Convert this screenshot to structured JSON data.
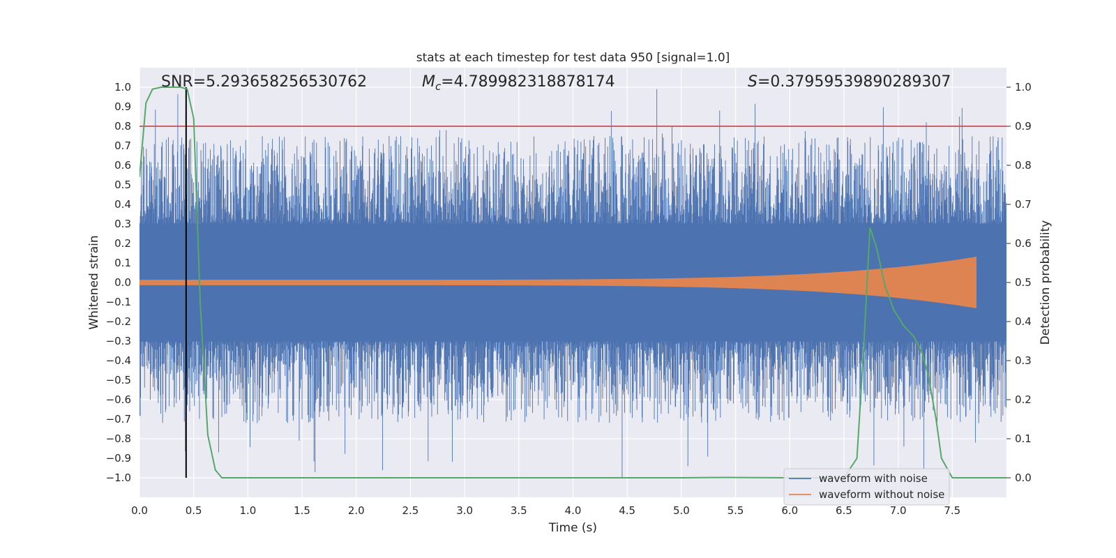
{
  "chart_data": {
    "type": "line",
    "title": "stats at each timestep for test data 950 [signal=1.0]",
    "xlabel": "Time (s)",
    "ylabel": "Whitened strain",
    "y2label": "Detection probability",
    "xlim": [
      0.0,
      8.0
    ],
    "ylim": [
      -1.1,
      1.1
    ],
    "y2lim": [
      -0.05,
      1.05
    ],
    "xticks": [
      "0.0",
      "0.5",
      "1.0",
      "1.5",
      "2.0",
      "2.5",
      "3.0",
      "3.5",
      "4.0",
      "4.5",
      "5.0",
      "5.5",
      "6.0",
      "6.5",
      "7.0",
      "7.5"
    ],
    "yticks": [
      "-1.0",
      "-0.9",
      "-0.8",
      "-0.7",
      "-0.6",
      "-0.5",
      "-0.4",
      "-0.3",
      "-0.2",
      "-0.1",
      "0.0",
      "0.1",
      "0.2",
      "0.3",
      "0.4",
      "0.5",
      "0.6",
      "0.7",
      "0.8",
      "0.9",
      "1.0"
    ],
    "y2ticks": [
      "0.0",
      "0.1",
      "0.2",
      "0.3",
      "0.4",
      "0.5",
      "0.6",
      "0.7",
      "0.8",
      "0.9",
      "1.0"
    ],
    "annotations": {
      "snr": "SNR=5.293658256530762",
      "mc_symbol": "M",
      "mc_sub": "c",
      "mc_value": "=4.789982318878174",
      "s_symbol": "S",
      "s_value": "=0.37959539890289307"
    },
    "threshold": {
      "value": 0.9,
      "axis": "right",
      "color": "#c44e52"
    },
    "marker_time": 0.43,
    "series": [
      {
        "name": "waveform with noise",
        "color": "#4c72b0",
        "axis": "left",
        "x_range": [
          0.0,
          8.0
        ],
        "band_low": -0.3,
        "band_high": 0.3,
        "spike_max": 1.0,
        "spike_min": -1.0
      },
      {
        "name": "waveform without noise",
        "color": "#dd8452",
        "axis": "left",
        "chirp_end": 7.72,
        "amplitude_start": 0.012,
        "amplitude_end": 0.13
      },
      {
        "name": "detection probability",
        "color": "#55a868",
        "axis": "right",
        "x": [
          0.0,
          0.06,
          0.12,
          0.2,
          0.3,
          0.38,
          0.44,
          0.5,
          0.56,
          0.63,
          0.7,
          0.76,
          1.0,
          2.0,
          3.0,
          4.0,
          5.0,
          5.4,
          6.0,
          6.5,
          6.62,
          6.68,
          6.74,
          6.8,
          6.88,
          6.96,
          7.05,
          7.15,
          7.22,
          7.28,
          7.35,
          7.4,
          7.5,
          8.0
        ],
        "y": [
          0.77,
          0.96,
          0.995,
          1.0,
          1.0,
          1.0,
          0.995,
          0.92,
          0.45,
          0.11,
          0.02,
          0.0,
          0.0,
          0.0,
          0.0,
          0.0,
          0.0,
          0.001,
          0.0,
          0.0,
          0.05,
          0.32,
          0.64,
          0.59,
          0.49,
          0.43,
          0.39,
          0.36,
          0.32,
          0.26,
          0.15,
          0.05,
          0.0,
          0.0
        ]
      }
    ],
    "legend": [
      "waveform with noise",
      "waveform without noise"
    ],
    "legend_location": "lower-right",
    "colors": {
      "background": "#eaeaf2",
      "grid": "#ffffff",
      "marker": "#000000"
    }
  }
}
